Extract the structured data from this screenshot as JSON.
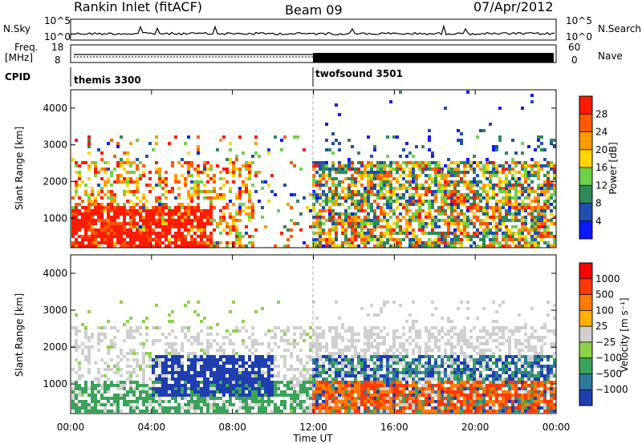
{
  "header": {
    "title": "Rankin Inlet (fitACF)",
    "beam": "Beam 09",
    "date": "07/Apr/2012"
  },
  "strip_labels": {
    "nsky": "N.Sky",
    "nsky_ticks": [
      "10^5",
      "10^0"
    ],
    "nsearch": "N.Search",
    "nsearch_ticks": [
      "10^5",
      "10^0"
    ],
    "freq": "Freq.",
    "freq_unit": "[MHz]",
    "freq_ticks": [
      "18",
      "8"
    ],
    "nave": "Nave",
    "nave_ticks": [
      "60",
      "0"
    ],
    "cpid": "CPID",
    "cpid_modes": [
      "themis 3300",
      "twofsound 3501"
    ]
  },
  "chart_data": [
    {
      "type": "heatmap",
      "name": "power-panel",
      "ylabel": "Slant Range [km]",
      "yticks": [
        "1000",
        "2000",
        "3000",
        "4000"
      ],
      "ylim": [
        200,
        4500
      ],
      "xlim": [
        0,
        24
      ],
      "colorbar_label": "Power [dB]",
      "colorbar_ticks": [
        "4",
        "8",
        "12",
        "16",
        "20",
        "24",
        "28"
      ],
      "colorbar_colors": [
        "#0a1aff",
        "#1f4fb0",
        "#2e8a5a",
        "#6fd04a",
        "#ffd400",
        "#ff9a00",
        "#ff5a00",
        "#ff1a00"
      ]
    },
    {
      "type": "heatmap",
      "name": "velocity-panel",
      "ylabel": "Slant Range [km]",
      "yticks": [
        "1000",
        "2000",
        "3000",
        "4000"
      ],
      "ylim": [
        200,
        4500
      ],
      "xlim": [
        0,
        24
      ],
      "colorbar_label": "Velocity [m s⁻¹]",
      "colorbar_ticks": [
        "1000",
        "500",
        "100",
        "25",
        "−25",
        "−100",
        "−500",
        "−1000"
      ],
      "colorbar_colors": [
        "#1f3fb0",
        "#2e7a9a",
        "#3aa35a",
        "#8cd34a",
        "#cfcfcf",
        "#ffb000",
        "#ff7a00",
        "#ff3a00",
        "#ff0000"
      ]
    }
  ],
  "xaxis": {
    "label": "Time UT",
    "ticks": [
      "00:00",
      "04:00",
      "08:00",
      "12:00",
      "16:00",
      "20:00",
      "00:00"
    ]
  }
}
